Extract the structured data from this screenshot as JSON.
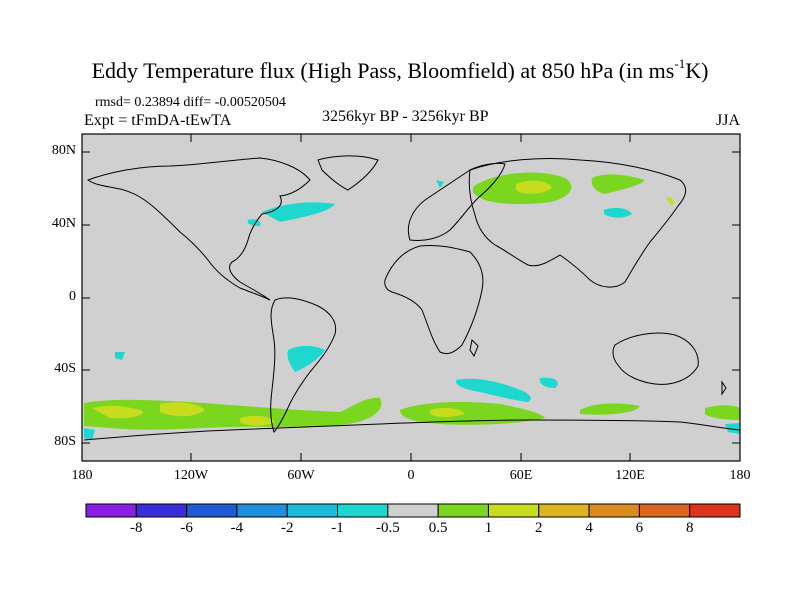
{
  "title": {
    "main": "Eddy Temperature flux (High Pass, Bloomfield) at 850 hPa (in ms",
    "sup": "-1",
    "tail": "K)"
  },
  "stats": "rmsd= 0.23894 diff= -0.00520504",
  "expt": "Expt = tFmDA-tEwTA",
  "period": "3256kyr BP - 3256kyr BP",
  "season": "JJA",
  "lat_labels": [
    "80N",
    "40N",
    "0",
    "40S",
    "80S"
  ],
  "lon_labels": [
    "180",
    "120W",
    "60W",
    "0",
    "60E",
    "120E",
    "180"
  ],
  "colorbar": {
    "labels": [
      "-8",
      "-6",
      "-4",
      "-2",
      "-1",
      "-0.5",
      "0.5",
      "1",
      "2",
      "4",
      "6",
      "8"
    ],
    "colors": [
      "#8a1ee6",
      "#3a2edc",
      "#1e5ad6",
      "#1e8ee0",
      "#1ebadc",
      "#1ed8d0",
      "#d0d0d0",
      "#7ad61e",
      "#c8dc1e",
      "#dcb41e",
      "#dc8c1e",
      "#dc641e",
      "#dc321e"
    ]
  },
  "colors": {
    "background": "#d0d0d0",
    "cyan": "#1ed8d0",
    "green": "#7ad61e",
    "yellow": "#c8dc1e"
  }
}
